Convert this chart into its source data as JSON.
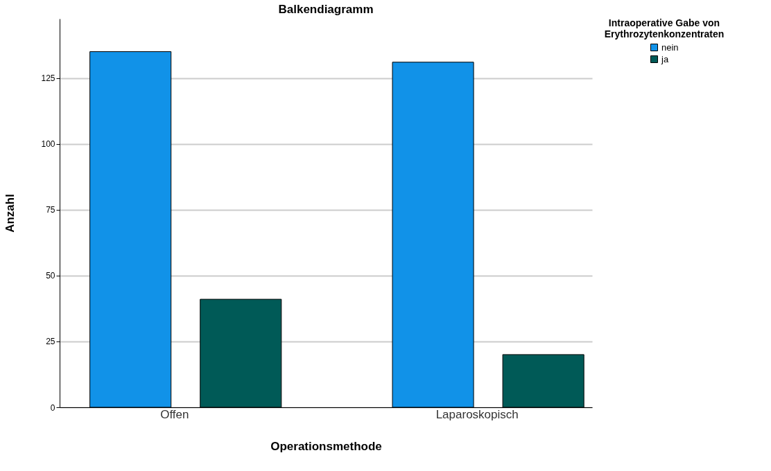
{
  "chart_data": {
    "type": "bar",
    "title": "Balkendiagramm",
    "xlabel": "Operationsmethode",
    "ylabel": "Anzahl",
    "legend_title": "Intraoperative Gabe von Erythrozytenkonzentraten",
    "categories": [
      "Offen",
      "Laparoskopisch"
    ],
    "series": [
      {
        "name": "nein",
        "color": "#1192e8",
        "values": [
          135,
          131
        ]
      },
      {
        "name": "ja",
        "color": "#005a57",
        "values": [
          41,
          20
        ]
      }
    ],
    "ylim": [
      0,
      147.5
    ],
    "yticks": [
      0,
      25,
      50,
      75,
      100,
      125
    ],
    "grid": "y",
    "legend": "top right"
  }
}
